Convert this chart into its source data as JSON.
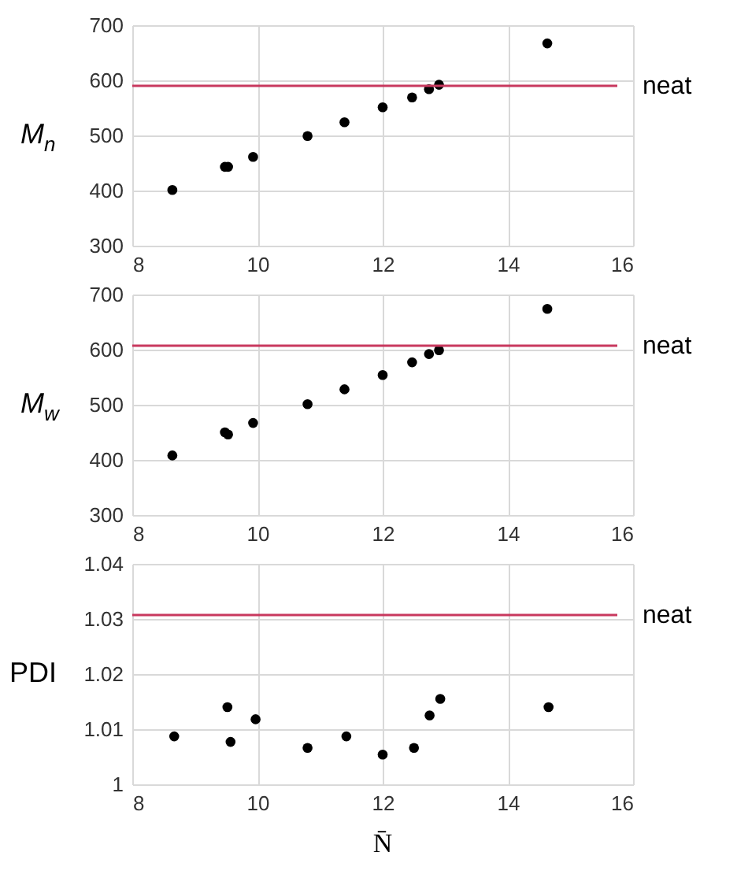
{
  "chart_data": [
    {
      "type": "scatter",
      "ylabel": "M$_{n}$",
      "x": [
        8.64,
        9.48,
        9.53,
        9.93,
        10.8,
        11.39,
        12.0,
        12.47,
        12.74,
        12.9,
        14.63
      ],
      "series": [
        {
          "color": "#000000",
          "values": [
            401,
            443,
            443,
            461,
            499,
            524,
            551,
            569,
            584,
            592,
            667
          ]
        }
      ],
      "xlim": [
        8,
        16
      ],
      "xticks": [
        8,
        10,
        12,
        14,
        16
      ],
      "ylim": [
        300,
        700
      ],
      "yticks": [
        300,
        400,
        500,
        600,
        700
      ],
      "ref_lines": [
        {
          "axis": "y",
          "value": 590,
          "label": "neat",
          "color": "#c8385e"
        }
      ],
      "grid": true,
      "marker": "circle"
    },
    {
      "type": "scatter",
      "ylabel": "M$_{w}$",
      "x": [
        8.64,
        9.48,
        9.53,
        9.93,
        10.8,
        11.39,
        12.0,
        12.47,
        12.74,
        12.9,
        14.63
      ],
      "series": [
        {
          "color": "#000000",
          "values": [
            408,
            450,
            446,
            467,
            501,
            528,
            554,
            577,
            592,
            599,
            674
          ]
        }
      ],
      "xlim": [
        8,
        16
      ],
      "xticks": [
        8,
        10,
        12,
        14,
        16
      ],
      "ylim": [
        300,
        700
      ],
      "yticks": [
        300,
        400,
        500,
        600,
        700
      ],
      "ref_lines": [
        {
          "axis": "y",
          "value": 607,
          "label": "neat",
          "color": "#c8385e"
        }
      ],
      "grid": true,
      "marker": "circle"
    },
    {
      "type": "scatter",
      "ylabel": "PDI",
      "xlabel": "N̄",
      "x": [
        8.67,
        9.52,
        9.57,
        9.97,
        10.8,
        11.42,
        12.0,
        12.5,
        12.75,
        12.92,
        14.65
      ],
      "series": [
        {
          "color": "#000000",
          "values": [
            1.0087,
            1.014,
            1.0077,
            1.0118,
            1.0066,
            1.0087,
            1.0054,
            1.0066,
            1.0125,
            1.0155,
            1.014
          ]
        }
      ],
      "xlim": [
        8,
        16
      ],
      "xticks": [
        8,
        10,
        12,
        14,
        16
      ],
      "ylim": [
        1,
        1.04
      ],
      "yticks": [
        1,
        1.01,
        1.02,
        1.03,
        1.04
      ],
      "ref_lines": [
        {
          "axis": "y",
          "value": 1.0307,
          "label": "neat",
          "color": "#c8385e"
        }
      ],
      "grid": true,
      "marker": "circle"
    }
  ]
}
